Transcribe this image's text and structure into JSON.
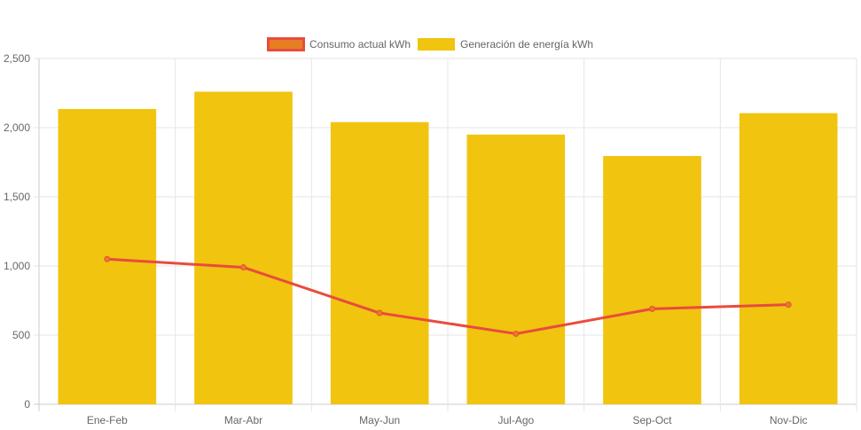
{
  "chart_data": {
    "type": "bar",
    "categories": [
      "Ene-Feb",
      "Mar-Abr",
      "May-Jun",
      "Jul-Ago",
      "Sep-Oct",
      "Nov-Dic"
    ],
    "series": [
      {
        "name": "Consumo actual kWh",
        "type": "line",
        "values": [
          1050,
          990,
          660,
          510,
          690,
          720
        ],
        "color": "#e84c3d",
        "legend_fill": "#e67e22"
      },
      {
        "name": "Generación de energía kWh",
        "type": "bar",
        "values": [
          2135,
          2260,
          2040,
          1950,
          1795,
          2105
        ],
        "color": "#f1c40f"
      }
    ],
    "ylim": [
      0,
      2500
    ],
    "yticks": [
      "0",
      "500",
      "1,000",
      "1,500",
      "2,000",
      "2,500"
    ],
    "ytick_values": [
      0,
      500,
      1000,
      1500,
      2000,
      2500
    ],
    "grid": true,
    "legend_position": "top-center",
    "title": "",
    "xlabel": "",
    "ylabel": ""
  }
}
